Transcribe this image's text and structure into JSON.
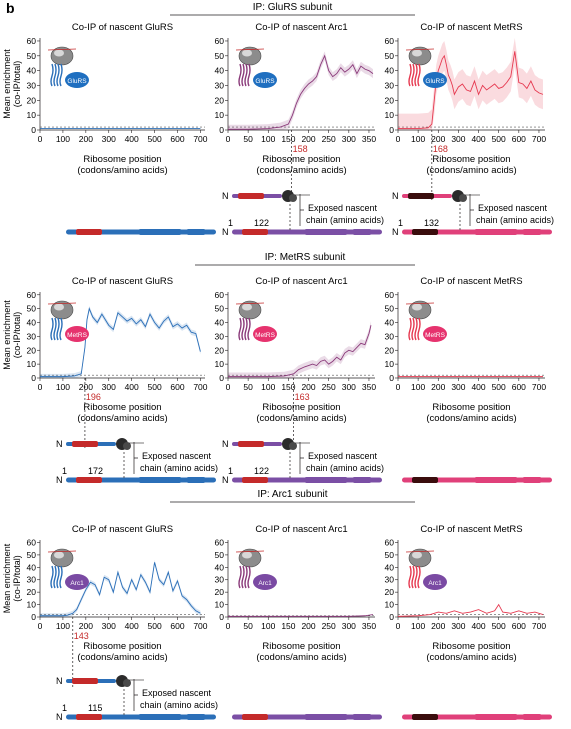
{
  "panel_label": "b",
  "sections": [
    {
      "title": "IP: GluRS subunit",
      "badge": "GluRS",
      "badge_color": "#1f6fc0"
    },
    {
      "title": "IP: MetRS  subunit",
      "badge": "MetRS",
      "badge_color": "#e6336e"
    },
    {
      "title": "IP: Arc1 subunit",
      "badge": "Arc1",
      "badge_color": "#7a4aa3"
    }
  ],
  "colors": {
    "gluRS": "#2b6fb8",
    "arc1": "#7b4fa5",
    "metRS": "#e63950",
    "red_segment": "#c42a2a",
    "dark_segment": "#3a0d0d",
    "ribosome": "#5b5b5b",
    "sd_band": "#f4c1c6"
  },
  "ylabel": [
    "Mean enrichment",
    "(co-IP/total)"
  ],
  "xlabel": [
    "Ribosome position",
    "(codons/amino acids)"
  ],
  "exposed_label": [
    "Exposed nascent",
    "chain (amino acids)"
  ],
  "n_label": "N",
  "chart_data": [
    {
      "type": "line",
      "section": 0,
      "col": 0,
      "title": "Co-IP of nascent GluRS",
      "series_color": "#2b6fb8",
      "x": [
        0,
        700
      ],
      "y": [
        1,
        1
      ],
      "xlim": [
        0,
        720
      ],
      "ylim": [
        0,
        62
      ],
      "xticks": [
        0,
        100,
        200,
        300,
        400,
        500,
        600,
        700
      ],
      "yticks": [
        0,
        10,
        20,
        30,
        40,
        50,
        60
      ],
      "show_ylabel": true,
      "show_xlabel": true,
      "onset": null,
      "baseline": 2
    },
    {
      "type": "line",
      "section": 0,
      "col": 1,
      "title": "Co-IP of nascent Arc1",
      "series_color": "#8a3a7a",
      "x": [
        0,
        50,
        100,
        130,
        150,
        160,
        170,
        180,
        190,
        200,
        210,
        220,
        230,
        240,
        250,
        260,
        270,
        280,
        290,
        300,
        310,
        320,
        330,
        340,
        350,
        360
      ],
      "y": [
        0.5,
        0.5,
        1,
        2,
        4,
        10,
        18,
        24,
        28,
        31,
        33,
        36,
        44,
        50,
        40,
        36,
        38,
        42,
        39,
        41,
        44,
        38,
        43,
        41,
        40,
        38
      ],
      "sd": 3,
      "xlim": [
        0,
        365
      ],
      "ylim": [
        0,
        62
      ],
      "xticks": [
        0,
        50,
        100,
        150,
        200,
        250,
        300,
        350
      ],
      "yticks": [
        0,
        10,
        20,
        30,
        40,
        50,
        60
      ],
      "show_ylabel": false,
      "show_xlabel": true,
      "onset": 158,
      "onset_label": "158",
      "baseline": 2
    },
    {
      "type": "line",
      "section": 0,
      "col": 2,
      "title": "Co-IP of nascent MetRS",
      "series_color": "#e63950",
      "x": [
        0,
        100,
        150,
        168,
        180,
        190,
        200,
        210,
        220,
        230,
        240,
        250,
        260,
        270,
        280,
        300,
        320,
        340,
        360,
        380,
        400,
        420,
        440,
        460,
        480,
        500,
        520,
        540,
        560,
        580,
        600,
        620,
        640,
        660,
        680,
        700,
        720
      ],
      "y": [
        1,
        1,
        1.5,
        4,
        20,
        34,
        40,
        44,
        48,
        50,
        44,
        37,
        34,
        30,
        24,
        29,
        31,
        27,
        26,
        33,
        24,
        30,
        27,
        29,
        31,
        28,
        29,
        32,
        36,
        53,
        32,
        31,
        28,
        33,
        27,
        25,
        24
      ],
      "sd": 10,
      "xlim": [
        0,
        730
      ],
      "ylim": [
        0,
        62
      ],
      "xticks": [
        0,
        100,
        200,
        300,
        400,
        500,
        600,
        700
      ],
      "yticks": [
        0,
        10,
        20,
        30,
        40,
        50,
        60
      ],
      "show_ylabel": false,
      "show_xlabel": true,
      "onset": 168,
      "onset_label": "168",
      "baseline": 2
    },
    {
      "type": "line",
      "section": 1,
      "col": 0,
      "title": "Co-IP of nascent GluRS",
      "series_color": "#2b6fb8",
      "x": [
        0,
        100,
        150,
        180,
        196,
        205,
        215,
        230,
        250,
        270,
        300,
        320,
        340,
        360,
        380,
        400,
        420,
        440,
        460,
        480,
        500,
        520,
        540,
        560,
        580,
        600,
        620,
        640,
        660,
        680,
        700
      ],
      "y": [
        1,
        1,
        1.5,
        3,
        22,
        42,
        50,
        44,
        40,
        46,
        38,
        35,
        47,
        44,
        41,
        43,
        39,
        42,
        37,
        46,
        40,
        36,
        41,
        44,
        37,
        39,
        36,
        38,
        33,
        32,
        19
      ],
      "sd": 2,
      "xlim": [
        0,
        720
      ],
      "ylim": [
        0,
        62
      ],
      "xticks": [
        0,
        100,
        200,
        300,
        400,
        500,
        600,
        700
      ],
      "yticks": [
        0,
        10,
        20,
        30,
        40,
        50,
        60
      ],
      "show_ylabel": true,
      "show_xlabel": true,
      "onset": 196,
      "onset_label": "196",
      "baseline": 2
    },
    {
      "type": "line",
      "section": 1,
      "col": 1,
      "title": "Co-IP of nascent Arc1",
      "series_color": "#8a3a7a",
      "x": [
        0,
        100,
        140,
        163,
        175,
        190,
        200,
        210,
        220,
        230,
        240,
        250,
        260,
        270,
        280,
        290,
        300,
        310,
        320,
        330,
        340,
        350,
        355
      ],
      "y": [
        1,
        1,
        1.5,
        3,
        6,
        8,
        9,
        10,
        9,
        12,
        13,
        10,
        12,
        15,
        13,
        18,
        20,
        19,
        22,
        25,
        24,
        32,
        38
      ],
      "sd": 3,
      "xlim": [
        0,
        365
      ],
      "ylim": [
        0,
        62
      ],
      "xticks": [
        0,
        50,
        100,
        150,
        200,
        250,
        300,
        350
      ],
      "yticks": [
        0,
        10,
        20,
        30,
        40,
        50,
        60
      ],
      "show_ylabel": false,
      "show_xlabel": true,
      "onset": 163,
      "onset_label": "163",
      "baseline": 2
    },
    {
      "type": "line",
      "section": 1,
      "col": 2,
      "title": "Co-IP of nascent MetRS",
      "series_color": "#e63950",
      "x": [
        0,
        720
      ],
      "y": [
        1,
        1
      ],
      "xlim": [
        0,
        730
      ],
      "ylim": [
        0,
        62
      ],
      "xticks": [
        0,
        100,
        200,
        300,
        400,
        500,
        600,
        700
      ],
      "yticks": [
        0,
        10,
        20,
        30,
        40,
        50,
        60
      ],
      "show_ylabel": false,
      "show_xlabel": true,
      "onset": null,
      "baseline": 2
    },
    {
      "type": "line",
      "section": 2,
      "col": 0,
      "title": "Co-IP of nascent GluRS",
      "series_color": "#2b6fb8",
      "x": [
        0,
        100,
        120,
        143,
        160,
        180,
        200,
        220,
        240,
        260,
        280,
        300,
        320,
        340,
        360,
        380,
        400,
        420,
        440,
        460,
        480,
        500,
        520,
        540,
        560,
        580,
        600,
        620,
        640,
        660,
        680,
        700
      ],
      "y": [
        1,
        1,
        1.5,
        3,
        6,
        14,
        22,
        28,
        26,
        18,
        32,
        30,
        20,
        36,
        24,
        19,
        30,
        22,
        34,
        28,
        20,
        44,
        30,
        26,
        36,
        21,
        29,
        17,
        14,
        9,
        5,
        3
      ],
      "sd": 2,
      "xlim": [
        0,
        720
      ],
      "ylim": [
        0,
        62
      ],
      "xticks": [
        0,
        100,
        200,
        300,
        400,
        500,
        600,
        700
      ],
      "yticks": [
        0,
        10,
        20,
        30,
        40,
        50,
        60
      ],
      "show_ylabel": true,
      "show_xlabel": true,
      "onset": 143,
      "onset_label": "143",
      "baseline": 2
    },
    {
      "type": "line",
      "section": 2,
      "col": 1,
      "title": "Co-IP of nascent Arc1",
      "series_color": "#8a3a7a",
      "x": [
        0,
        100,
        200,
        300,
        340,
        360
      ],
      "y": [
        0.5,
        0.5,
        0.5,
        0.5,
        1,
        2
      ],
      "xlim": [
        0,
        365
      ],
      "ylim": [
        0,
        62
      ],
      "xticks": [
        0,
        50,
        100,
        150,
        200,
        250,
        300,
        350
      ],
      "yticks": [
        0,
        10,
        20,
        30,
        40,
        50,
        60
      ],
      "show_ylabel": false,
      "show_xlabel": true,
      "onset": null,
      "baseline": 1
    },
    {
      "type": "line",
      "section": 2,
      "col": 2,
      "title": "Co-IP of nascent MetRS",
      "series_color": "#e63950",
      "x": [
        0,
        100,
        160,
        200,
        240,
        280,
        320,
        360,
        400,
        440,
        480,
        500,
        520,
        560,
        600,
        640,
        680,
        720
      ],
      "y": [
        0.5,
        1,
        2,
        4,
        3,
        5,
        3,
        4,
        6,
        3,
        5,
        10,
        4,
        3,
        5,
        3,
        4,
        2
      ],
      "xlim": [
        0,
        730
      ],
      "ylim": [
        0,
        62
      ],
      "xticks": [
        0,
        100,
        200,
        300,
        400,
        500,
        600,
        700
      ],
      "yticks": [
        0,
        10,
        20,
        30,
        40,
        50,
        60
      ],
      "show_ylabel": false,
      "show_xlabel": true,
      "onset": null,
      "baseline": 2
    }
  ],
  "schematics": [
    {
      "section": 0,
      "col": 1,
      "nums": [
        "1",
        "122"
      ],
      "color": "#7b4fa5",
      "seg": "red",
      "ribo": true
    },
    {
      "section": 0,
      "col": 2,
      "nums": [
        "1",
        "132"
      ],
      "color": "#e0407a",
      "seg": "dark",
      "ribo": true
    },
    {
      "section": 1,
      "col": 0,
      "nums": [
        "1",
        "172"
      ],
      "color": "#2b6fb8",
      "seg": "red",
      "ribo": true
    },
    {
      "section": 1,
      "col": 1,
      "nums": [
        "1",
        "122"
      ],
      "color": "#7b4fa5",
      "seg": "red",
      "ribo": true
    },
    {
      "section": 2,
      "col": 0,
      "nums": [
        "1",
        "115"
      ],
      "color": "#2b6fb8",
      "seg": "red",
      "ribo": true
    }
  ]
}
